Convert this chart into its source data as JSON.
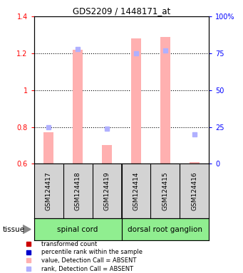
{
  "title": "GDS2209 / 1448171_at",
  "samples": [
    "GSM124417",
    "GSM124418",
    "GSM124419",
    "GSM124414",
    "GSM124415",
    "GSM124416"
  ],
  "groups": [
    {
      "name": "spinal cord",
      "indices": [
        0,
        1,
        2
      ],
      "color": "#90EE90"
    },
    {
      "name": "dorsal root ganglion",
      "indices": [
        3,
        4,
        5
      ],
      "color": "#90EE90"
    }
  ],
  "bar_values": [
    0.77,
    1.22,
    0.7,
    1.28,
    1.29,
    0.61
  ],
  "rank_secondary": [
    25,
    78,
    24,
    75,
    77,
    20
  ],
  "bar_bottom": 0.6,
  "ylim_left": [
    0.6,
    1.4
  ],
  "ylim_right": [
    0,
    100
  ],
  "yticks_left": [
    0.6,
    0.8,
    1.0,
    1.2,
    1.4
  ],
  "ytick_labels_left": [
    "0.6",
    "0.8",
    "1",
    "1.2",
    "1.4"
  ],
  "yticks_right": [
    0,
    25,
    50,
    75,
    100
  ],
  "ytick_labels_right": [
    "0",
    "25",
    "50",
    "75",
    "100%"
  ],
  "bar_color_absent": "#ffb0b0",
  "bar_color_present": "#cc0000",
  "rank_color_absent": "#b0b0ff",
  "rank_color_present": "#0000cc",
  "absent_flags": [
    true,
    true,
    true,
    true,
    true,
    true
  ],
  "tissue_label": "tissue",
  "background_color": "#ffffff",
  "bar_width": 0.35,
  "rank_marker_size": 5,
  "legend_items": [
    {
      "color": "#cc0000",
      "label": "transformed count"
    },
    {
      "color": "#0000cc",
      "label": "percentile rank within the sample"
    },
    {
      "color": "#ffb0b0",
      "label": "value, Detection Call = ABSENT"
    },
    {
      "color": "#b0b0ff",
      "label": "rank, Detection Call = ABSENT"
    }
  ]
}
